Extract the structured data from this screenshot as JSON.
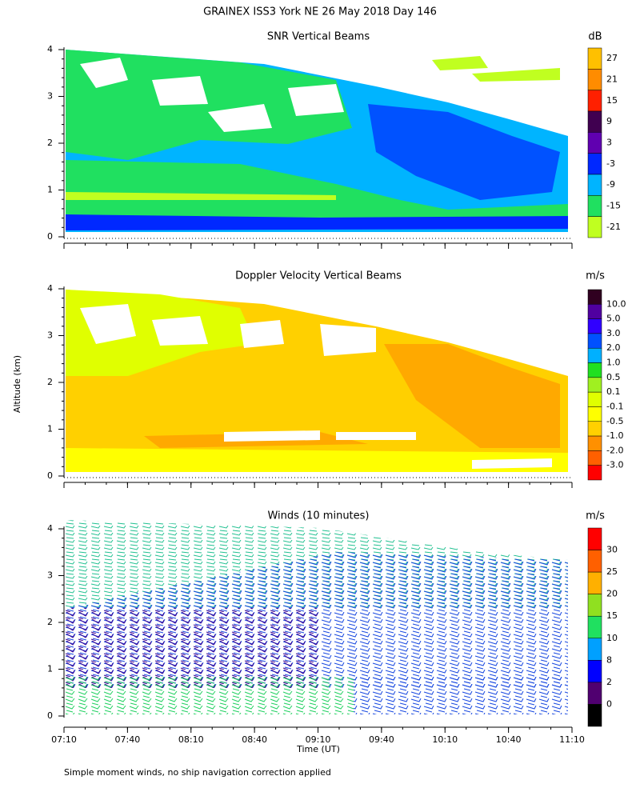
{
  "title": "GRAINEX ISS3 York NE  26 May 2018 Day 146",
  "y_axis_label": "Altitude (km)",
  "x_axis": {
    "label": "Time (UT)",
    "ticks": [
      "07:10",
      "07:40",
      "08:10",
      "08:40",
      "09:10",
      "09:40",
      "10:10",
      "10:40",
      "11:10"
    ]
  },
  "footnote": "Simple moment winds, no ship navigation correction applied",
  "panels": [
    {
      "title": "SNR Vertical Beams",
      "unit": "dB",
      "ylim": [
        0,
        4.05
      ],
      "yticks": [
        0,
        1,
        2,
        3,
        4
      ],
      "colorbar": {
        "colors": [
          "#ffc000",
          "#ff8c00",
          "#ff2000",
          "#400050",
          "#6000b0",
          "#0028ff",
          "#00b4ff",
          "#20e060",
          "#c0ff20"
        ],
        "levels": [
          27,
          21,
          15,
          9,
          3,
          -3,
          -9,
          -15,
          -21
        ]
      }
    },
    {
      "title": "Doppler Velocity Vertical Beams",
      "unit": "m/s",
      "ylim": [
        0,
        4.05
      ],
      "yticks": [
        0,
        1,
        2,
        3,
        4
      ],
      "colorbar": {
        "colors": [
          "#300020",
          "#5000a0",
          "#3000ff",
          "#0050ff",
          "#00b0ff",
          "#20e020",
          "#a0f020",
          "#e0ff00",
          "#ffff00",
          "#ffd000",
          "#ff9000",
          "#ff6000",
          "#ff0000"
        ],
        "levels": [
          {
            "value": 10,
            "label": "10.0"
          },
          {
            "value": 5,
            "label": "5.0"
          },
          {
            "value": 3,
            "label": "3.0"
          },
          {
            "value": 2,
            "label": "2.0"
          },
          {
            "value": 1,
            "label": "1.0"
          },
          0.5,
          0.1,
          -0.1,
          -0.5,
          {
            "value": -1,
            "label": "-1.0"
          },
          {
            "value": -2,
            "label": "-2.0"
          },
          {
            "value": -3,
            "label": "-3.0"
          }
        ]
      }
    },
    {
      "title": "Winds (10 minutes)",
      "unit": "m/s",
      "ylim": [
        0,
        4.05
      ],
      "yticks": [
        0,
        1,
        2,
        3,
        4
      ],
      "colorbar": {
        "colors": [
          "#ff0000",
          "#ff6000",
          "#ffb000",
          "#90e020",
          "#20e060",
          "#00a0ff",
          "#0000ff",
          "#500070",
          "#000000"
        ],
        "levels": [
          30,
          25,
          20,
          15,
          10,
          8,
          2,
          0
        ]
      }
    }
  ]
}
